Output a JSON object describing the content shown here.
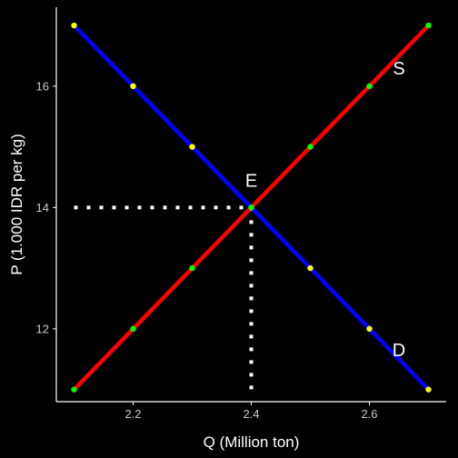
{
  "chart_data": {
    "type": "line",
    "title": "",
    "xlabel": "Q (Million ton)",
    "ylabel": "P (1.000 IDR per kg)",
    "xlim": [
      2.07,
      2.73
    ],
    "ylim": [
      10.8,
      17.3
    ],
    "xticks": [
      2.2,
      2.4,
      2.6
    ],
    "xtick_labels": [
      "2.2",
      "2.4",
      "2.6"
    ],
    "yticks": [
      12,
      14,
      16
    ],
    "ytick_labels": [
      "12",
      "14",
      "16"
    ],
    "grid": false,
    "background": "#000000",
    "axis_color": "#ffffff",
    "series": [
      {
        "name": "S",
        "color": "#ff0000",
        "points": [
          {
            "x": 2.1,
            "y": 11,
            "marker": "#00ff00"
          },
          {
            "x": 2.2,
            "y": 12,
            "marker": "#00ff00"
          },
          {
            "x": 2.3,
            "y": 13,
            "marker": "#00ff00"
          },
          {
            "x": 2.4,
            "y": 14,
            "marker": "#00ff00"
          },
          {
            "x": 2.5,
            "y": 15,
            "marker": "#00ff00"
          },
          {
            "x": 2.6,
            "y": 16,
            "marker": "#00ff00"
          },
          {
            "x": 2.7,
            "y": 17,
            "marker": "#00ff00"
          }
        ]
      },
      {
        "name": "D",
        "color": "#0000ff",
        "points": [
          {
            "x": 2.1,
            "y": 17,
            "marker": "#ffff00"
          },
          {
            "x": 2.2,
            "y": 16,
            "marker": "#ffff00"
          },
          {
            "x": 2.3,
            "y": 15,
            "marker": "#ffff00"
          },
          {
            "x": 2.4,
            "y": 14,
            "marker": "#00ff00"
          },
          {
            "x": 2.5,
            "y": 13,
            "marker": "#ffff00"
          },
          {
            "x": 2.6,
            "y": 12,
            "marker": "#ffff00"
          },
          {
            "x": 2.7,
            "y": 11,
            "marker": "#ffff00"
          }
        ]
      }
    ],
    "equilibrium": {
      "label": "E",
      "x": 2.4,
      "y": 14,
      "guide_color": "#ffffff"
    },
    "curve_labels": [
      {
        "text": "S",
        "x": 2.65,
        "y": 16.3
      },
      {
        "text": "D",
        "x": 2.65,
        "y": 11.65
      }
    ],
    "equilibrium_label_pos": {
      "x": 2.4,
      "y": 14.45
    }
  }
}
